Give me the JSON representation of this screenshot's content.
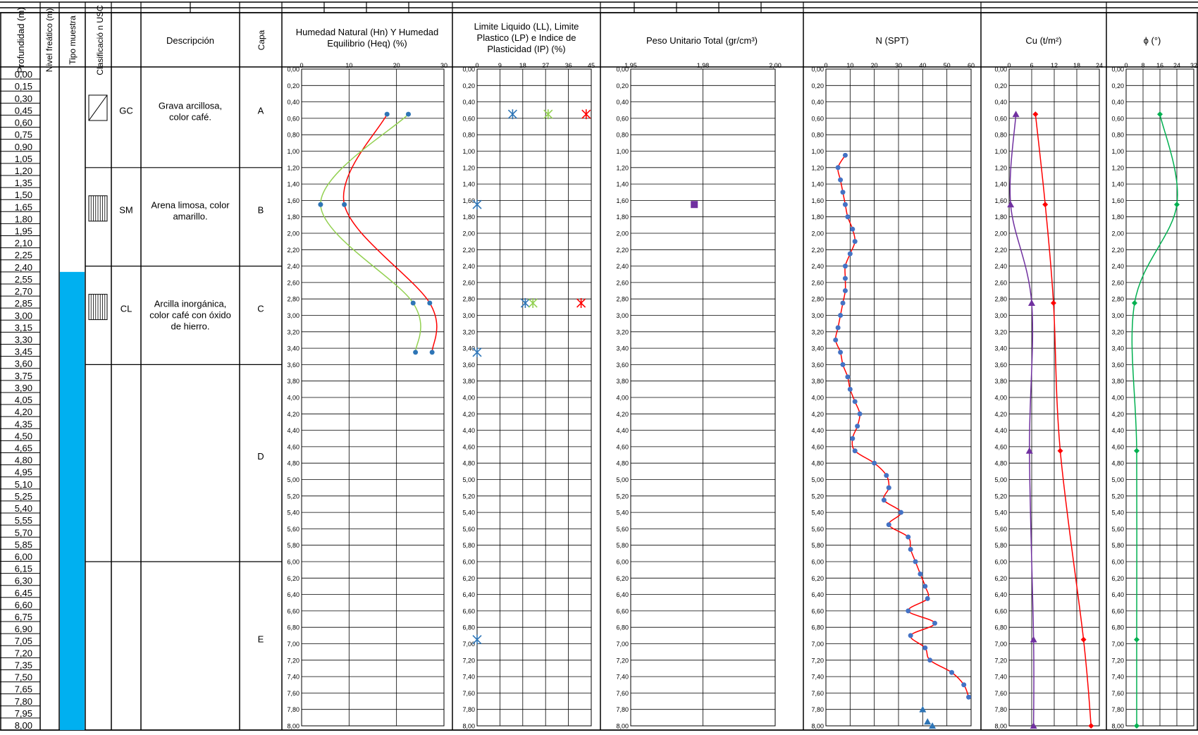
{
  "headers": {
    "depth": "Profundidad (m)",
    "water": "Nivel freático (m)",
    "sample": "Tipo muestra",
    "usc": "Clasificació n USC",
    "desc": "Descripción",
    "layer": "Capa",
    "humidity": "Humedad Natural (Hn) Y Humedad Equilibrio (Heq)  (%)",
    "limits": "Limite Liquido (LL), Limite Plastico (LP) e Indice de Plasticidad (IP) (%)",
    "unit_weight": "Peso Unitario Total (gr/cm³)",
    "spt": "N (SPT)",
    "cu": "Cu (t/m²)",
    "phi": "ϕ (°)"
  },
  "depth_labels": [
    "0,00",
    "0,15",
    "0,30",
    "0,45",
    "0,60",
    "0,75",
    "0,90",
    "1,05",
    "1,20",
    "1,35",
    "1,50",
    "1,65",
    "1,80",
    "1,95",
    "2,10",
    "2,25",
    "2,40",
    "2,55",
    "2,70",
    "2,85",
    "3,00",
    "3,15",
    "3,30",
    "3,45",
    "3,60",
    "3,75",
    "3,90",
    "4,05",
    "4,20",
    "4,35",
    "4,50",
    "4,65",
    "4,80",
    "4,95",
    "5,10",
    "5,25",
    "5,40",
    "5,55",
    "5,70",
    "5,85",
    "6,00",
    "6,15",
    "6,30",
    "6,45",
    "6,60",
    "6,75",
    "6,90",
    "7,05",
    "7,20",
    "7,35",
    "7,50",
    "7,65",
    "7,80",
    "7,95",
    "8,00"
  ],
  "axis_depth_labels": [
    "0,00",
    "0,20",
    "0,40",
    "0,60",
    "0,80",
    "1,00",
    "1,20",
    "1,40",
    "1,60",
    "1,80",
    "2,00",
    "2,20",
    "2,40",
    "2,60",
    "2,80",
    "3,00",
    "3,20",
    "3,40",
    "3,60",
    "3,80",
    "4,00",
    "4,20",
    "4,40",
    "4,60",
    "4,80",
    "5,00",
    "5,20",
    "5,40",
    "5,60",
    "5,80",
    "6,00",
    "6,20",
    "6,40",
    "6,60",
    "6,80",
    "7,00",
    "7,20",
    "7,40",
    "7,60",
    "7,80",
    "8,00"
  ],
  "water_table_depth": 2.4,
  "colors": {
    "water": "#00b0f0",
    "red": "#ff0000",
    "green": "#92d050",
    "blue": "#2e75b6",
    "purple": "#7030a0",
    "phi": "#00b050"
  },
  "layers": [
    {
      "from": 0.0,
      "to": 1.2,
      "usc": "GC",
      "description": "Grava arcillosa, color café.",
      "layer": "A",
      "symbol": "diagonal-hatch-icon"
    },
    {
      "from": 1.2,
      "to": 2.4,
      "usc": "SM",
      "description": "Arena limosa, color amarillo.",
      "layer": "B",
      "symbol": "vertical-hatch-icon"
    },
    {
      "from": 2.4,
      "to": 3.6,
      "usc": "CL",
      "description": "Arcilla inorgánica, color café con óxido de hierro.",
      "layer": "C",
      "symbol": "vertical-hatch-icon"
    },
    {
      "from": 3.6,
      "to": 6.0,
      "usc": "",
      "description": "",
      "layer": "D",
      "symbol": ""
    },
    {
      "from": 6.0,
      "to": 8.0,
      "usc": "",
      "description": "",
      "layer": "E",
      "symbol": ""
    }
  ],
  "chart_data": [
    {
      "type": "line",
      "id": "humidity",
      "x_range": [
        0,
        30
      ],
      "x_ticks": [
        0,
        10,
        20,
        30
      ],
      "x_tick_labels": [
        "0",
        "10",
        "20",
        "30"
      ],
      "y_range": [
        0,
        8
      ],
      "series": [
        {
          "color": "#ff0000",
          "marker_color": "#2e75b6",
          "points": [
            [
              18.0,
              0.55
            ],
            [
              9.0,
              1.65
            ],
            [
              27.0,
              2.85
            ],
            [
              27.5,
              3.45
            ]
          ]
        },
        {
          "color": "#92d050",
          "marker_color": "#2e75b6",
          "points": [
            [
              22.5,
              0.55
            ],
            [
              4.0,
              1.65
            ],
            [
              23.5,
              2.85
            ],
            [
              24.0,
              3.45
            ]
          ]
        }
      ]
    },
    {
      "type": "scatter",
      "id": "limits",
      "x_range": [
        0,
        45
      ],
      "x_ticks": [
        0,
        9,
        18,
        27,
        36,
        45
      ],
      "x_tick_labels": [
        "0",
        "9",
        "18",
        "27",
        "36",
        "45"
      ],
      "y_range": [
        0,
        8
      ],
      "series": [
        {
          "color": "#2e75b6",
          "marker": "x",
          "points": [
            [
              14,
              0.55
            ],
            [
              0,
              1.65
            ],
            [
              19,
              2.85
            ],
            [
              0,
              3.45
            ],
            [
              0,
              6.95
            ]
          ]
        },
        {
          "color": "#92d050",
          "marker": "x",
          "points": [
            [
              28,
              0.55
            ],
            [
              22,
              2.85
            ]
          ]
        },
        {
          "color": "#ff0000",
          "marker": "x",
          "points": [
            [
              43,
              0.55
            ],
            [
              41,
              2.85
            ]
          ]
        }
      ]
    },
    {
      "type": "scatter",
      "id": "unit_weight",
      "x_range": [
        1.95,
        2.0
      ],
      "x_ticks": [
        1.95,
        1.975,
        2.0
      ],
      "x_tick_labels": [
        "1,95",
        "1,98",
        "2,00"
      ],
      "y_range": [
        0,
        8
      ],
      "series": [
        {
          "color": "#7030a0",
          "marker": "square",
          "points": [
            [
              1.972,
              1.65
            ]
          ]
        }
      ]
    },
    {
      "type": "line",
      "id": "spt",
      "x_range": [
        0,
        60
      ],
      "x_ticks": [
        0,
        10,
        20,
        30,
        40,
        50,
        60
      ],
      "x_tick_labels": [
        "0",
        "10",
        "20",
        "30",
        "40",
        "50",
        "60"
      ],
      "y_range": [
        0,
        8
      ],
      "series": [
        {
          "color": "#ff0000",
          "marker_color": "#4472c4",
          "points": [
            [
              8,
              1.05
            ],
            [
              5,
              1.2
            ],
            [
              6,
              1.35
            ],
            [
              7,
              1.5
            ],
            [
              8,
              1.65
            ],
            [
              9,
              1.8
            ],
            [
              11,
              1.95
            ],
            [
              12,
              2.1
            ],
            [
              10,
              2.25
            ],
            [
              8,
              2.4
            ],
            [
              8,
              2.55
            ],
            [
              8,
              2.7
            ],
            [
              7,
              2.85
            ],
            [
              6,
              3.0
            ],
            [
              5,
              3.15
            ],
            [
              4,
              3.3
            ],
            [
              6,
              3.45
            ],
            [
              7,
              3.6
            ],
            [
              9,
              3.75
            ],
            [
              10,
              3.9
            ],
            [
              12,
              4.05
            ],
            [
              14,
              4.2
            ],
            [
              13,
              4.35
            ],
            [
              11,
              4.5
            ],
            [
              12,
              4.65
            ],
            [
              20,
              4.8
            ],
            [
              25,
              4.95
            ],
            [
              26,
              5.1
            ],
            [
              24,
              5.25
            ],
            [
              31,
              5.4
            ],
            [
              26,
              5.55
            ],
            [
              34,
              5.7
            ],
            [
              35,
              5.85
            ],
            [
              37,
              6.0
            ],
            [
              39,
              6.15
            ],
            [
              41,
              6.3
            ],
            [
              42,
              6.45
            ],
            [
              34,
              6.6
            ],
            [
              45,
              6.75
            ],
            [
              35,
              6.9
            ],
            [
              41,
              7.05
            ],
            [
              43,
              7.2
            ],
            [
              52,
              7.35
            ],
            [
              57,
              7.5
            ],
            [
              59,
              7.65
            ]
          ]
        },
        {
          "color": "#2e75b6",
          "marker": "triangle",
          "line": false,
          "points": [
            [
              40,
              7.8
            ],
            [
              42,
              7.95
            ],
            [
              44,
              8.0
            ]
          ]
        }
      ]
    },
    {
      "type": "line",
      "id": "cu",
      "x_range": [
        0,
        24
      ],
      "x_ticks": [
        0,
        6,
        12,
        18,
        24
      ],
      "x_tick_labels": [
        "0",
        "6",
        "12",
        "18",
        "24"
      ],
      "y_range": [
        0,
        8
      ],
      "series": [
        {
          "color": "#ff0000",
          "marker": "diamond",
          "points": [
            [
              7.0,
              0.55
            ],
            [
              9.6,
              1.65
            ],
            [
              11.8,
              2.85
            ],
            [
              13.6,
              4.65
            ],
            [
              19.8,
              6.95
            ],
            [
              21.8,
              8.0
            ]
          ]
        },
        {
          "color": "#7030a0",
          "marker": "triangle",
          "points": [
            [
              1.8,
              0.55
            ],
            [
              0.4,
              1.65
            ],
            [
              6.0,
              2.85
            ],
            [
              5.4,
              4.65
            ],
            [
              6.5,
              6.95
            ],
            [
              6.5,
              8.0
            ]
          ]
        }
      ]
    },
    {
      "type": "line",
      "id": "phi",
      "x_range": [
        0,
        32
      ],
      "x_ticks": [
        0,
        8,
        16,
        24,
        32
      ],
      "x_tick_labels": [
        "0",
        "8",
        "16",
        "24",
        "32"
      ],
      "y_range": [
        0,
        8
      ],
      "series": [
        {
          "color": "#00b050",
          "marker": "diamond",
          "points": [
            [
              16,
              0.55
            ],
            [
              24,
              1.65
            ],
            [
              4,
              2.85
            ],
            [
              5,
              4.65
            ],
            [
              5,
              6.95
            ],
            [
              5,
              8.0
            ]
          ]
        }
      ]
    }
  ]
}
